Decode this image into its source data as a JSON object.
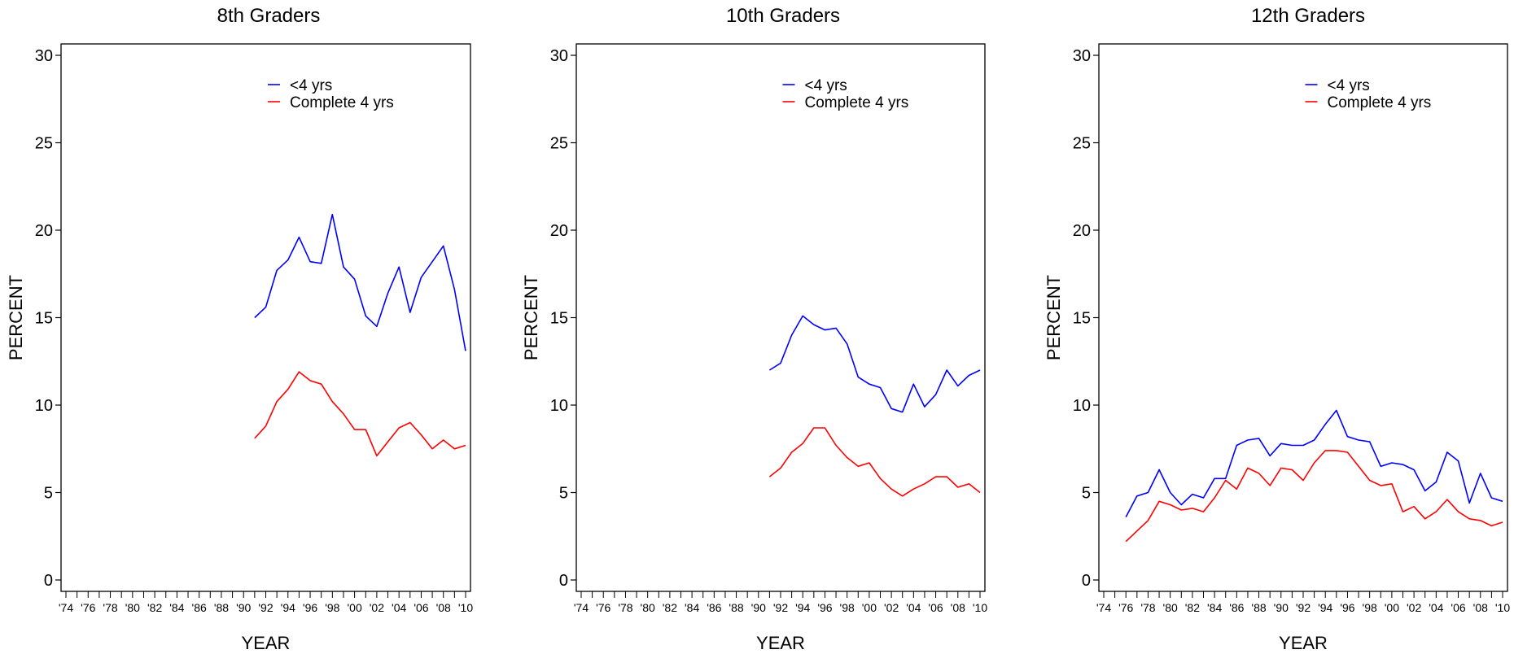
{
  "chart_data": [
    {
      "type": "line",
      "title": "8th Graders",
      "xlabel": "YEAR",
      "ylabel": "PERCENT",
      "ylim": [
        0,
        30
      ],
      "yticks": [
        "0",
        "5",
        "10",
        "15",
        "20",
        "25",
        "30"
      ],
      "xlim": [
        1974,
        2010
      ],
      "xtick_labels": [
        "'74",
        "'76",
        "'78",
        "'80",
        "'82",
        "'84",
        "'86",
        "'88",
        "'90",
        "'92",
        "'94",
        "'96",
        "'98",
        "'00",
        "'02",
        "'04",
        "'06",
        "'08",
        "'10"
      ],
      "x": [
        1991,
        1992,
        1993,
        1994,
        1995,
        1996,
        1997,
        1998,
        1999,
        2000,
        2001,
        2002,
        2003,
        2004,
        2005,
        2006,
        2007,
        2008,
        2009,
        2010
      ],
      "series": [
        {
          "name": "<4 yrs",
          "color": "#0000ff",
          "values": [
            15.0,
            15.6,
            17.7,
            18.3,
            19.6,
            18.2,
            18.1,
            20.9,
            17.9,
            17.2,
            15.1,
            14.5,
            16.4,
            17.9,
            15.3,
            17.3,
            18.2,
            19.1,
            16.6,
            13.1
          ]
        },
        {
          "name": "Complete 4 yrs",
          "color": "#ff0000",
          "values": [
            8.1,
            8.8,
            10.2,
            10.9,
            11.9,
            11.4,
            11.2,
            10.2,
            9.5,
            8.6,
            8.6,
            7.1,
            7.9,
            8.7,
            9.0,
            8.3,
            7.5,
            8.0,
            7.5,
            7.7
          ]
        }
      ],
      "legend_position": "top-right",
      "grid": false
    },
    {
      "type": "line",
      "title": "10th Graders",
      "xlabel": "YEAR",
      "ylabel": "PERCENT",
      "ylim": [
        0,
        30
      ],
      "yticks": [
        "0",
        "5",
        "10",
        "15",
        "20",
        "25",
        "30"
      ],
      "xlim": [
        1974,
        2010
      ],
      "xtick_labels": [
        "'74",
        "'76",
        "'78",
        "'80",
        "'82",
        "'84",
        "'86",
        "'88",
        "'90",
        "'92",
        "'94",
        "'96",
        "'98",
        "'00",
        "'02",
        "'04",
        "'06",
        "'08",
        "'10"
      ],
      "x": [
        1991,
        1992,
        1993,
        1994,
        1995,
        1996,
        1997,
        1998,
        1999,
        2000,
        2001,
        2002,
        2003,
        2004,
        2005,
        2006,
        2007,
        2008,
        2009,
        2010
      ],
      "series": [
        {
          "name": "<4 yrs",
          "color": "#0000ff",
          "values": [
            12.0,
            12.4,
            14.0,
            15.1,
            14.6,
            14.3,
            14.4,
            13.5,
            11.6,
            11.2,
            11.0,
            9.8,
            9.6,
            11.2,
            9.9,
            10.6,
            12.0,
            11.1,
            11.7,
            12.0
          ]
        },
        {
          "name": "Complete 4 yrs",
          "color": "#ff0000",
          "values": [
            5.9,
            6.4,
            7.3,
            7.8,
            8.7,
            8.7,
            7.7,
            7.0,
            6.5,
            6.7,
            5.8,
            5.2,
            4.8,
            5.2,
            5.5,
            5.9,
            5.9,
            5.3,
            5.5,
            5.0
          ]
        }
      ],
      "legend_position": "top-right",
      "grid": false
    },
    {
      "type": "line",
      "title": "12th Graders",
      "xlabel": "YEAR",
      "ylabel": "PERCENT",
      "ylim": [
        0,
        30
      ],
      "yticks": [
        "0",
        "5",
        "10",
        "15",
        "20",
        "25",
        "30"
      ],
      "xlim": [
        1974,
        2010
      ],
      "xtick_labels": [
        "'74",
        "'76",
        "'78",
        "'80",
        "'82",
        "'84",
        "'86",
        "'88",
        "'90",
        "'92",
        "'94",
        "'96",
        "'98",
        "'00",
        "'02",
        "'04",
        "'06",
        "'08",
        "'10"
      ],
      "x": [
        1976,
        1977,
        1978,
        1979,
        1980,
        1981,
        1982,
        1983,
        1984,
        1985,
        1986,
        1987,
        1988,
        1989,
        1990,
        1991,
        1992,
        1993,
        1994,
        1995,
        1996,
        1997,
        1998,
        1999,
        2000,
        2001,
        2002,
        2003,
        2004,
        2005,
        2006,
        2007,
        2008,
        2009,
        2010
      ],
      "series": [
        {
          "name": "<4 yrs",
          "color": "#0000ff",
          "values": [
            3.6,
            4.8,
            5.0,
            6.3,
            5.0,
            4.3,
            4.9,
            4.7,
            5.8,
            5.8,
            7.7,
            8.0,
            8.1,
            7.1,
            7.8,
            7.7,
            7.7,
            8.0,
            8.9,
            9.7,
            8.2,
            8.0,
            7.9,
            6.5,
            6.7,
            6.6,
            6.3,
            5.1,
            5.6,
            7.3,
            6.8,
            4.4,
            6.1,
            4.7,
            4.5
          ]
        },
        {
          "name": "Complete 4 yrs",
          "color": "#ff0000",
          "values": [
            2.2,
            2.8,
            3.4,
            4.5,
            4.3,
            4.0,
            4.1,
            3.9,
            4.7,
            5.7,
            5.2,
            6.4,
            6.1,
            5.4,
            6.4,
            6.3,
            5.7,
            6.7,
            7.4,
            7.4,
            7.3,
            6.5,
            5.7,
            5.4,
            5.5,
            3.9,
            4.2,
            3.5,
            3.9,
            4.6,
            3.9,
            3.5,
            3.4,
            3.1,
            3.3
          ]
        }
      ],
      "legend_position": "top-right",
      "grid": false
    }
  ]
}
